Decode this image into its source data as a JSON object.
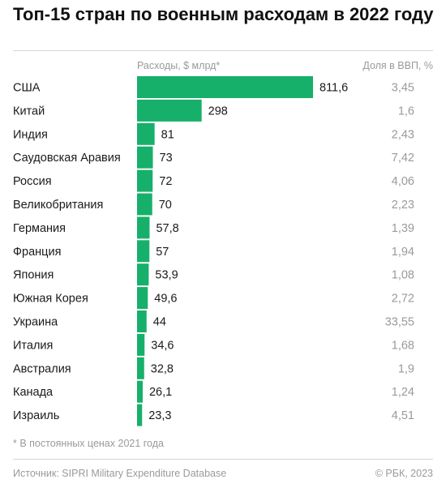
{
  "title": "Топ-15 стран по военным расходам в 2022 году",
  "col_spend_label": "Расходы, $ млрд*",
  "col_gdp_label": "Доля в ВВП, %",
  "footnote": "* В постоянных ценах 2021 года",
  "source": "Источник: SIPRI Military Expenditure Database",
  "credit": "© РБК, 2023",
  "colors": {
    "bar": "#17b06b",
    "text": "#1a1a1a",
    "muted": "#9a9a9a",
    "rule": "#d6d6d6"
  },
  "chart_data": {
    "type": "bar",
    "orientation": "horizontal",
    "categories": [
      "США",
      "Китай",
      "Индия",
      "Саудовская Аравия",
      "Россия",
      "Великобритания",
      "Германия",
      "Франция",
      "Япония",
      "Южная Корея",
      "Украина",
      "Италия",
      "Австралия",
      "Канада",
      "Израиль"
    ],
    "series": [
      {
        "name": "Расходы, $ млрд*",
        "values": [
          811.6,
          298,
          81,
          73,
          72,
          70,
          57.8,
          57,
          53.9,
          49.6,
          44,
          34.6,
          32.8,
          26.1,
          23.3
        ]
      }
    ],
    "value_labels": [
      "811,6",
      "298",
      "81",
      "73",
      "72",
      "70",
      "57,8",
      "57",
      "53,9",
      "49,6",
      "44",
      "34,6",
      "32,8",
      "26,1",
      "23,3"
    ],
    "gdp_share_labels": [
      "3,45",
      "1,6",
      "2,43",
      "7,42",
      "4,06",
      "2,23",
      "1,39",
      "1,94",
      "1,08",
      "2,72",
      "33,55",
      "1,68",
      "1,9",
      "1,24",
      "4,51"
    ],
    "xlim": [
      0,
      811.6
    ],
    "grid": false,
    "legend": "none"
  }
}
